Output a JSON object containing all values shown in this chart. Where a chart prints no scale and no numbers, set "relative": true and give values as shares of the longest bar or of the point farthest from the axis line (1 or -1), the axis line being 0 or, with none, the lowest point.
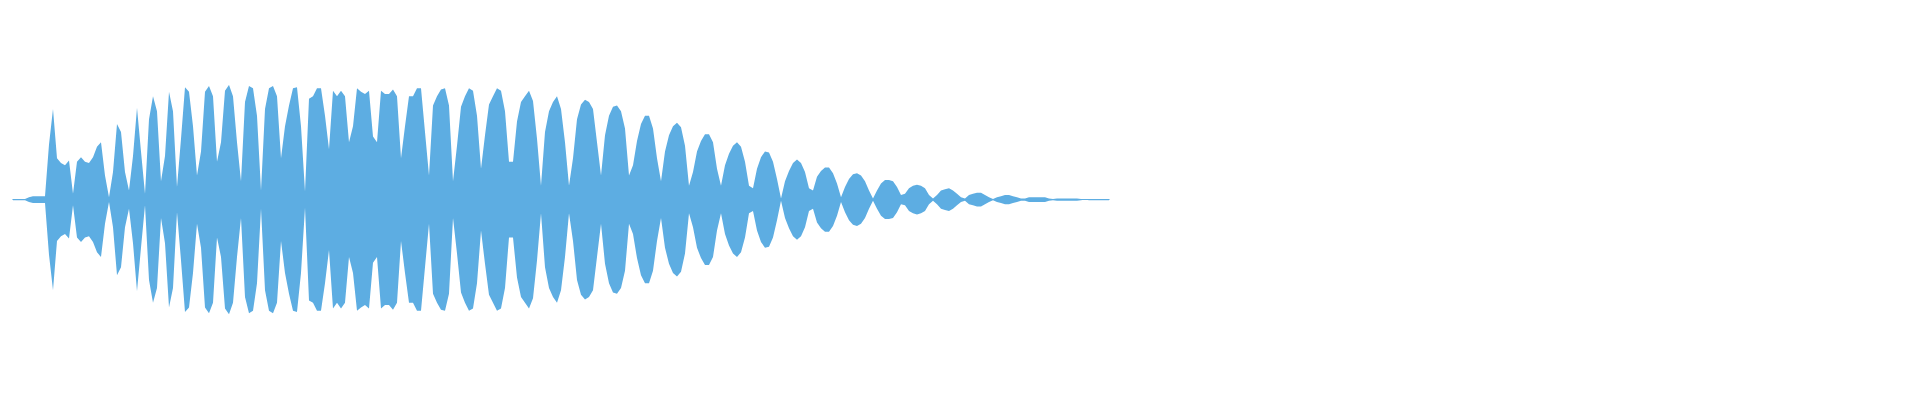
{
  "chart_data": {
    "type": "area",
    "relative": true,
    "categories": [
      null,
      null,
      null,
      null,
      null,
      null,
      null,
      null,
      null,
      null,
      null,
      null,
      null,
      null,
      null,
      null,
      null,
      null,
      null,
      null,
      null,
      null,
      null,
      null,
      null,
      null,
      null,
      null,
      null,
      null,
      null,
      null,
      null,
      null,
      null,
      null,
      null,
      null,
      null,
      null,
      null,
      null,
      null,
      null,
      null,
      null,
      null,
      null,
      null,
      null,
      null,
      null,
      null,
      null,
      null,
      null,
      null,
      null,
      null,
      null,
      null,
      null,
      null,
      null,
      null,
      null,
      null,
      null,
      null,
      null,
      null,
      null,
      null,
      null,
      null,
      null,
      null,
      null,
      null,
      null,
      null,
      null,
      null,
      null,
      null,
      null,
      null,
      null,
      null,
      null,
      null,
      null,
      null,
      null,
      null,
      null,
      null,
      null,
      null,
      null,
      null,
      null,
      null,
      null,
      null,
      null,
      null,
      null,
      null,
      null,
      null,
      null,
      null,
      null,
      null,
      null,
      null,
      null,
      null,
      null,
      null,
      null,
      null,
      null,
      null,
      null,
      null,
      null,
      null,
      null,
      null,
      null,
      null,
      null,
      null,
      null,
      null,
      null,
      null,
      null,
      null,
      null,
      null,
      null,
      null,
      null,
      null,
      null,
      null,
      null,
      null,
      null,
      null,
      null,
      null,
      null,
      null,
      null,
      null,
      null,
      null,
      null,
      null,
      null,
      null,
      null,
      null,
      null,
      null,
      null,
      null,
      null,
      null,
      null,
      null,
      null,
      null,
      null,
      null,
      null,
      null,
      null,
      null,
      null,
      null,
      null,
      null,
      null,
      null,
      null,
      null,
      null,
      null,
      null,
      null,
      null,
      null,
      null,
      null,
      null,
      null,
      null,
      null,
      null,
      null,
      null,
      null,
      null,
      null,
      null,
      null,
      null,
      null,
      null,
      null,
      null,
      null,
      null,
      null,
      null,
      null,
      null,
      null,
      null,
      null,
      null,
      null,
      null,
      null,
      null,
      null,
      null,
      null,
      null,
      null,
      null,
      null,
      null,
      null,
      null,
      null,
      null,
      null,
      null,
      null,
      null,
      null,
      null,
      null,
      null,
      null,
      null,
      null,
      null,
      null,
      null,
      null,
      null,
      null,
      null,
      null,
      null,
      null,
      null,
      null,
      null,
      null,
      null,
      null,
      null,
      null,
      null,
      null,
      null,
      null
    ],
    "series": [
      {
        "color": "#5dade2",
        "values": [
          0.005,
          0.005,
          0.005,
          0.005,
          0.02,
          0.03,
          0.03,
          0.03,
          0.03,
          0.48,
          0.79,
          0.36,
          0.32,
          0.3,
          0.34,
          0.05,
          0.33,
          0.37,
          0.33,
          0.32,
          0.37,
          0.46,
          0.5,
          0.21,
          0.02,
          0.24,
          0.66,
          0.59,
          0.24,
          0.08,
          0.38,
          0.8,
          0.42,
          0.05,
          0.7,
          0.9,
          0.77,
          0.16,
          0.38,
          0.94,
          0.77,
          0.11,
          0.53,
          0.98,
          0.94,
          0.64,
          0.21,
          0.42,
          0.94,
          0.99,
          0.9,
          0.33,
          0.5,
          0.95,
          1.0,
          0.9,
          0.5,
          0.16,
          0.85,
          0.99,
          0.97,
          0.73,
          0.08,
          0.79,
          0.97,
          0.99,
          0.9,
          0.36,
          0.64,
          0.82,
          0.97,
          0.98,
          0.64,
          0.07,
          0.88,
          0.9,
          0.97,
          0.97,
          0.73,
          0.44,
          0.95,
          0.9,
          0.95,
          0.9,
          0.5,
          0.64,
          0.97,
          0.94,
          0.92,
          0.95,
          0.55,
          0.5,
          0.95,
          0.92,
          0.92,
          0.96,
          0.9,
          0.36,
          0.64,
          0.9,
          0.9,
          0.97,
          0.97,
          0.59,
          0.21,
          0.82,
          0.9,
          0.96,
          0.97,
          0.82,
          0.16,
          0.47,
          0.81,
          0.9,
          0.97,
          0.95,
          0.73,
          0.27,
          0.56,
          0.83,
          0.9,
          0.97,
          0.95,
          0.77,
          0.33,
          0.33,
          0.68,
          0.85,
          0.9,
          0.95,
          0.86,
          0.53,
          0.12,
          0.59,
          0.77,
          0.85,
          0.9,
          0.79,
          0.5,
          0.12,
          0.36,
          0.7,
          0.83,
          0.87,
          0.85,
          0.79,
          0.5,
          0.21,
          0.56,
          0.73,
          0.81,
          0.82,
          0.77,
          0.62,
          0.21,
          0.3,
          0.51,
          0.66,
          0.73,
          0.73,
          0.62,
          0.36,
          0.16,
          0.42,
          0.56,
          0.64,
          0.67,
          0.63,
          0.47,
          0.12,
          0.24,
          0.42,
          0.51,
          0.57,
          0.57,
          0.5,
          0.27,
          0.12,
          0.3,
          0.4,
          0.47,
          0.5,
          0.46,
          0.33,
          0.12,
          0.1,
          0.27,
          0.37,
          0.42,
          0.41,
          0.33,
          0.18,
          0.01,
          0.16,
          0.25,
          0.32,
          0.35,
          0.32,
          0.24,
          0.1,
          0.08,
          0.2,
          0.25,
          0.28,
          0.28,
          0.23,
          0.14,
          0.02,
          0.11,
          0.18,
          0.22,
          0.23,
          0.21,
          0.16,
          0.08,
          0.01,
          0.08,
          0.14,
          0.17,
          0.17,
          0.16,
          0.11,
          0.04,
          0.05,
          0.1,
          0.12,
          0.13,
          0.12,
          0.1,
          0.04,
          0.01,
          0.04,
          0.08,
          0.09,
          0.1,
          0.08,
          0.05,
          0.02,
          0.01,
          0.04,
          0.05,
          0.06,
          0.06,
          0.04,
          0.02,
          0.005,
          0.02,
          0.03,
          0.04,
          0.04,
          0.03,
          0.02,
          0.01,
          0.01,
          0.02,
          0.02,
          0.02,
          0.02,
          0.02,
          0.01,
          0.005,
          0.01,
          0.01,
          0.01,
          0.01,
          0.01,
          0.01,
          0.005,
          0,
          0.005,
          0.005,
          0.005,
          0.005,
          0.005,
          0.005
        ]
      },
      {
        "color": "#5dade2",
        "values": [
          -0.005,
          -0.005,
          -0.005,
          -0.005,
          -0.02,
          -0.03,
          -0.03,
          -0.03,
          -0.03,
          -0.48,
          -0.79,
          -0.36,
          -0.32,
          -0.3,
          -0.34,
          -0.05,
          -0.33,
          -0.37,
          -0.33,
          -0.32,
          -0.37,
          -0.46,
          -0.5,
          -0.21,
          -0.02,
          -0.24,
          -0.66,
          -0.59,
          -0.24,
          -0.08,
          -0.38,
          -0.8,
          -0.42,
          -0.05,
          -0.7,
          -0.9,
          -0.77,
          -0.16,
          -0.38,
          -0.94,
          -0.77,
          -0.11,
          -0.53,
          -0.98,
          -0.94,
          -0.64,
          -0.21,
          -0.42,
          -0.94,
          -0.99,
          -0.9,
          -0.33,
          -0.5,
          -0.95,
          -1.0,
          -0.9,
          -0.5,
          -0.16,
          -0.85,
          -0.99,
          -0.97,
          -0.73,
          -0.08,
          -0.79,
          -0.97,
          -0.99,
          -0.9,
          -0.36,
          -0.64,
          -0.82,
          -0.97,
          -0.98,
          -0.64,
          -0.07,
          -0.88,
          -0.9,
          -0.97,
          -0.97,
          -0.73,
          -0.44,
          -0.95,
          -0.9,
          -0.95,
          -0.9,
          -0.5,
          -0.64,
          -0.97,
          -0.94,
          -0.92,
          -0.95,
          -0.55,
          -0.5,
          -0.95,
          -0.92,
          -0.92,
          -0.96,
          -0.9,
          -0.36,
          -0.64,
          -0.9,
          -0.9,
          -0.97,
          -0.97,
          -0.59,
          -0.21,
          -0.82,
          -0.9,
          -0.96,
          -0.97,
          -0.82,
          -0.16,
          -0.47,
          -0.81,
          -0.9,
          -0.97,
          -0.95,
          -0.73,
          -0.27,
          -0.56,
          -0.83,
          -0.9,
          -0.97,
          -0.95,
          -0.77,
          -0.33,
          -0.33,
          -0.68,
          -0.85,
          -0.9,
          -0.95,
          -0.86,
          -0.53,
          -0.12,
          -0.59,
          -0.77,
          -0.85,
          -0.9,
          -0.79,
          -0.5,
          -0.12,
          -0.36,
          -0.7,
          -0.83,
          -0.87,
          -0.85,
          -0.79,
          -0.5,
          -0.21,
          -0.56,
          -0.73,
          -0.81,
          -0.82,
          -0.77,
          -0.62,
          -0.21,
          -0.3,
          -0.51,
          -0.66,
          -0.73,
          -0.73,
          -0.62,
          -0.36,
          -0.16,
          -0.42,
          -0.56,
          -0.64,
          -0.67,
          -0.63,
          -0.47,
          -0.12,
          -0.24,
          -0.42,
          -0.51,
          -0.57,
          -0.57,
          -0.5,
          -0.27,
          -0.12,
          -0.3,
          -0.4,
          -0.47,
          -0.5,
          -0.46,
          -0.33,
          -0.12,
          -0.1,
          -0.27,
          -0.37,
          -0.42,
          -0.41,
          -0.33,
          -0.18,
          -0.01,
          -0.16,
          -0.25,
          -0.32,
          -0.35,
          -0.32,
          -0.24,
          -0.1,
          -0.08,
          -0.2,
          -0.25,
          -0.28,
          -0.28,
          -0.23,
          -0.14,
          -0.02,
          -0.11,
          -0.18,
          -0.22,
          -0.23,
          -0.21,
          -0.16,
          -0.08,
          -0.01,
          -0.08,
          -0.14,
          -0.17,
          -0.17,
          -0.16,
          -0.11,
          -0.04,
          -0.05,
          -0.1,
          -0.12,
          -0.13,
          -0.12,
          -0.1,
          -0.04,
          -0.01,
          -0.04,
          -0.08,
          -0.09,
          -0.1,
          -0.08,
          -0.05,
          -0.02,
          -0.01,
          -0.04,
          -0.05,
          -0.06,
          -0.06,
          -0.04,
          -0.02,
          -0.005,
          -0.02,
          -0.03,
          -0.04,
          -0.04,
          -0.03,
          -0.02,
          -0.01,
          -0.01,
          -0.02,
          -0.02,
          -0.02,
          -0.02,
          -0.02,
          -0.01,
          -0.005,
          -0.01,
          -0.01,
          -0.01,
          -0.01,
          -0.01,
          -0.01,
          -0.005,
          0,
          -0.005,
          -0.005,
          -0.005,
          -0.005,
          -0.005,
          -0.005
        ]
      }
    ]
  }
}
